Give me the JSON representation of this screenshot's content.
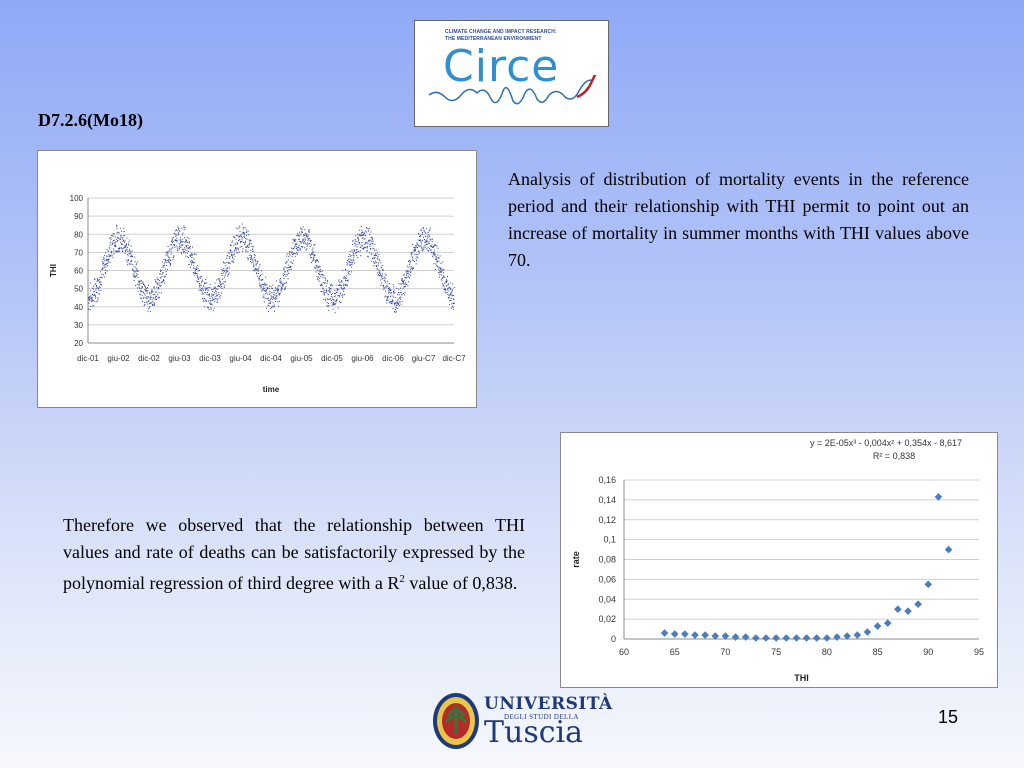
{
  "header": {
    "slide_title": "D7.2.6(Mo18)"
  },
  "logo": {
    "subtitle_line1": "CLIMATE CHANGE AND IMPACT RESEARCH:",
    "subtitle_line2": "THE MEDITERRANEAN ENVIRONMENT",
    "name": "Circe"
  },
  "text": {
    "paragraph1": "Analysis of distribution of mortality events in the reference period and their relationship with THI permit to point out an increase of mortality in summer months with THI values above 70.",
    "paragraph2_before_sup": "Therefore we observed that the relationship between THI values and rate of deaths can be satisfactorily expressed by the polynomial regression of third degree with a R",
    "paragraph2_sup": "2",
    "paragraph2_after_sup": " value of 0,838."
  },
  "footer": {
    "university_line1": "UNIVERSITÀ",
    "university_line2": "DEGLI STUDI DELLA",
    "university_line3": "Tuscia",
    "page_number": "15"
  },
  "colors": {
    "scatter_point": "#2a3f9a",
    "diamond": "#4a7ebb",
    "trendline": "#333333",
    "grid": "#d0d0d0"
  },
  "chart_data": [
    {
      "type": "scatter",
      "title": "",
      "xlabel": "time",
      "ylabel": "THI",
      "ylim": [
        20,
        100
      ],
      "yticks": [
        "20",
        "30",
        "40",
        "50",
        "60",
        "70",
        "80",
        "90",
        "100"
      ],
      "xticks": [
        "dic-01",
        "giu-02",
        "dic-02",
        "giu-03",
        "dic-03",
        "giu-04",
        "dic-04",
        "giu-05",
        "dic-05",
        "giu-06",
        "dic-06",
        "giu-C7",
        "dic-C7"
      ],
      "grid": true,
      "pattern": {
        "description": "seasonal daily values",
        "winter_mean": 45,
        "summer_mean": 78,
        "spread": 6
      }
    },
    {
      "type": "scatter",
      "title": "",
      "xlabel": "THI",
      "ylabel": "rate",
      "xlim": [
        60,
        95
      ],
      "ylim": [
        0,
        0.16
      ],
      "xticks": [
        "60",
        "65",
        "70",
        "75",
        "80",
        "85",
        "90",
        "95"
      ],
      "yticks": [
        "0",
        "0,02",
        "0,04",
        "0,06",
        "0,08",
        "0,1",
        "0,12",
        "0,14",
        "0,16"
      ],
      "equation": "y = 2E-05x³ - 0,004x² + 0,354x - 8,617",
      "r2": "R² = 0,838",
      "grid": true,
      "x": [
        64,
        65,
        66,
        67,
        68,
        69,
        70,
        71,
        72,
        73,
        74,
        75,
        76,
        77,
        78,
        79,
        80,
        81,
        82,
        83,
        84,
        85,
        86,
        87,
        88,
        89,
        90,
        91,
        92
      ],
      "y": [
        0.006,
        0.005,
        0.005,
        0.004,
        0.004,
        0.003,
        0.003,
        0.002,
        0.002,
        0.001,
        0.001,
        0.001,
        0.001,
        0.001,
        0.001,
        0.001,
        0.001,
        0.002,
        0.003,
        0.004,
        0.007,
        0.013,
        0.016,
        0.03,
        0.028,
        0.035,
        0.055,
        0.143,
        0.09
      ],
      "trendline": {
        "type": "poly3",
        "coefficients": [
          -8.617,
          0.354,
          -0.004,
          2e-05
        ]
      }
    }
  ]
}
